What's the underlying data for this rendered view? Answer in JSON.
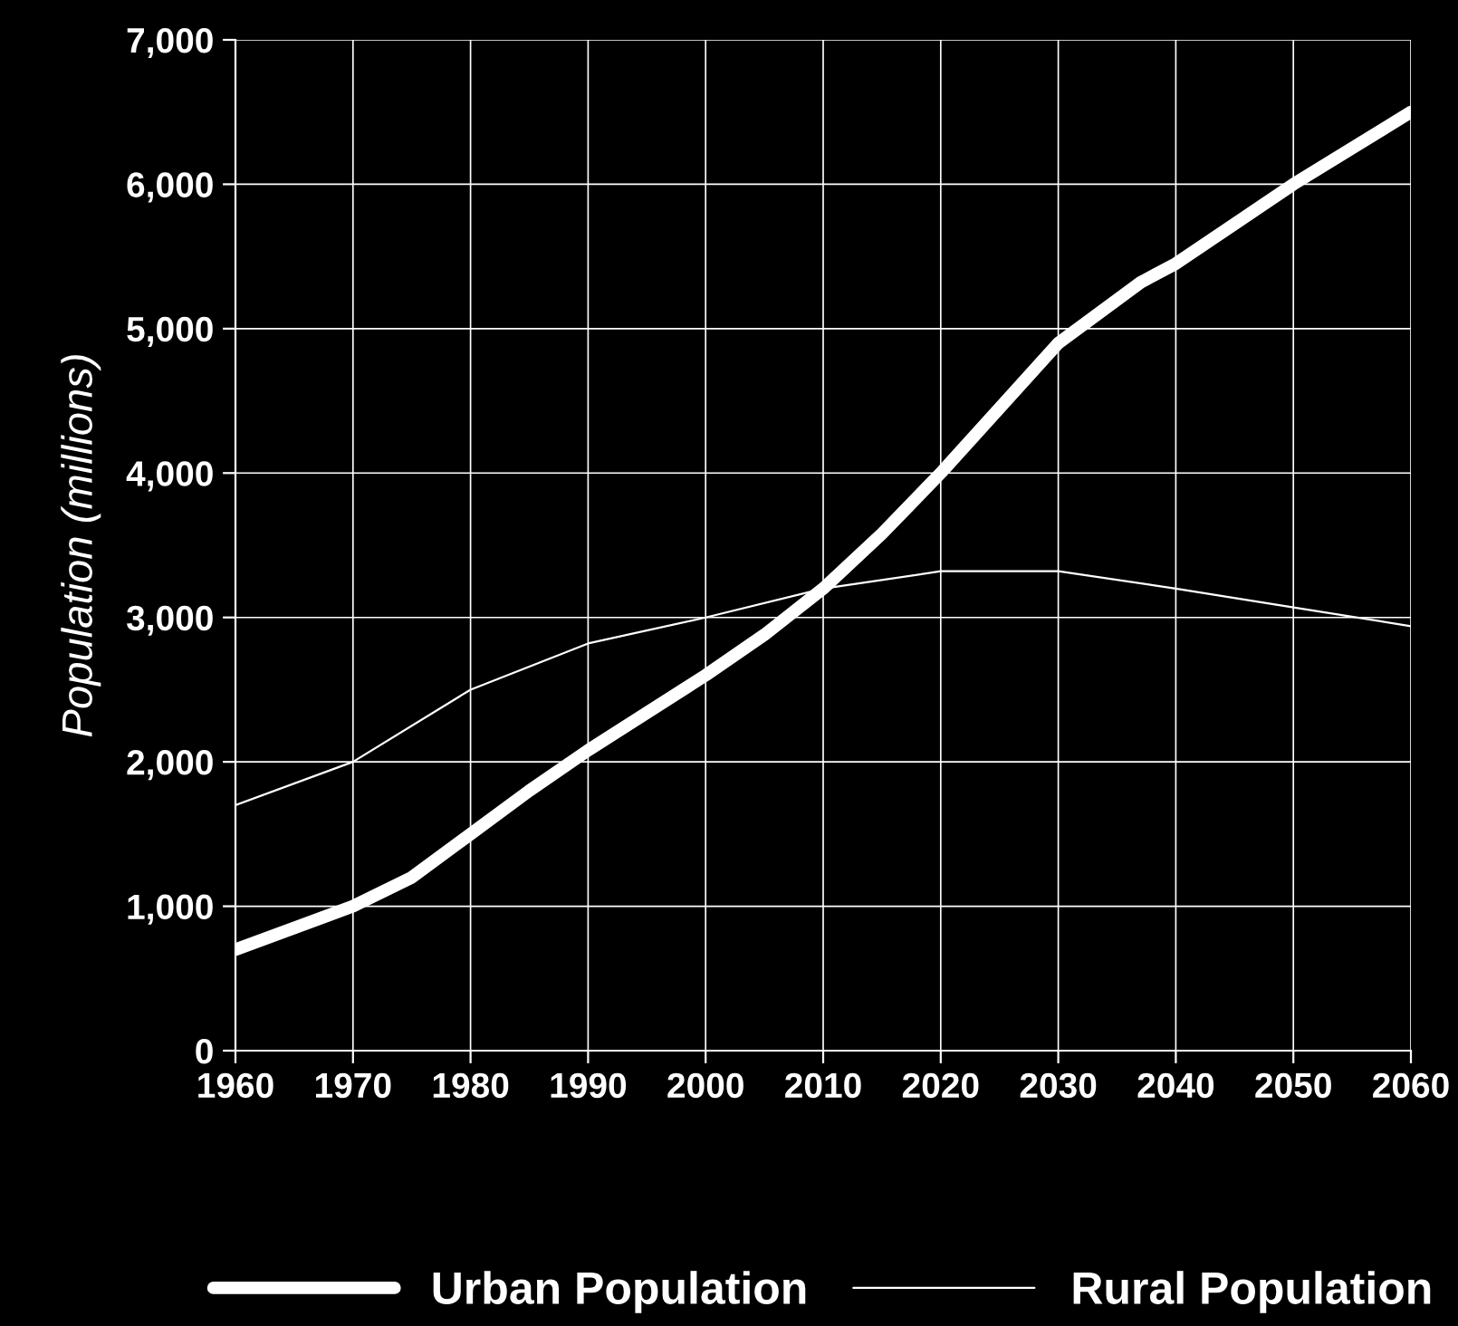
{
  "chart_data": {
    "type": "line",
    "ylabel": "Population (millions)",
    "x": [
      1960,
      1970,
      1975,
      1980,
      1985,
      1990,
      2000,
      2005,
      2010,
      2015,
      2020,
      2025,
      2030,
      2037,
      2040,
      2050,
      2060
    ],
    "series": [
      {
        "name": "Urban Population",
        "color": "#ffffff",
        "values": [
          700,
          1000,
          1200,
          1500,
          1800,
          2080,
          2600,
          2880,
          3200,
          3580,
          4000,
          4450,
          4900,
          5320,
          5450,
          6000,
          6500
        ]
      },
      {
        "name": "Rural Population",
        "color": "#ffffff",
        "x": [
          1960,
          1970,
          1980,
          1990,
          2000,
          2010,
          2020,
          2030,
          2040,
          2050,
          2060
        ],
        "values": [
          1700,
          2000,
          2500,
          2820,
          3000,
          3200,
          3320,
          3320,
          3200,
          3070,
          2940
        ]
      }
    ],
    "xlim": [
      1960,
      2060
    ],
    "xticks": [
      1960,
      1970,
      1980,
      1990,
      2000,
      2010,
      2020,
      2030,
      2040,
      2050,
      2060
    ],
    "ylim": [
      0,
      7000
    ],
    "yticks": [
      {
        "value": 0,
        "label": "0"
      },
      {
        "value": 1000,
        "label": "1,000"
      },
      {
        "value": 2000,
        "label": "2,000"
      },
      {
        "value": 3000,
        "label": "3,000"
      },
      {
        "value": 4000,
        "label": "4,000"
      },
      {
        "value": 5000,
        "label": "5,000"
      },
      {
        "value": 6000,
        "label": "6,000"
      },
      {
        "value": 7000,
        "label": "7,000"
      }
    ],
    "grid": true,
    "legend": "bottom",
    "marker": "none",
    "line_style": "solid"
  }
}
